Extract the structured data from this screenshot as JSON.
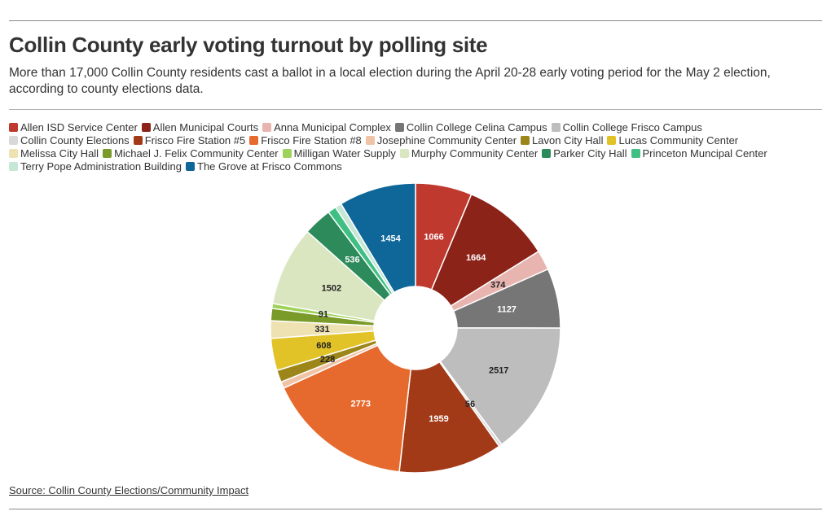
{
  "title": "Collin County early voting turnout by polling site",
  "subtitle": "More than 17,000 Collin County residents cast a ballot in a local election during the April 20-28 early voting period for the May 2 election, according to county elections data.",
  "source": "Source: Collin County Elections/Community Impact",
  "chart_data": {
    "type": "pie",
    "donut": true,
    "legend_position": "top-left",
    "labels": [
      "Allen ISD Service Center",
      "Allen Municipal Courts",
      "Anna Municipal Complex",
      "Collin College Celina Campus",
      "Collin College Frisco Campus",
      "Collin County Elections",
      "Frisco Fire Station #5",
      "Frisco Fire Station #8",
      "Josephine Community Center",
      "Lavon City Hall",
      "Lucas Community Center",
      "Melissa City Hall",
      "Michael J. Felix Community Center",
      "Milligan Water Supply",
      "Murphy Community Center",
      "Parker City Hall",
      "Princeton Muncipal Center",
      "Terry Pope Administration Building",
      "The Grove at Frisco Commons"
    ],
    "values": [
      1066,
      1664,
      374,
      1127,
      2517,
      56,
      1959,
      2773,
      124,
      228,
      608,
      331,
      230,
      91,
      1502,
      536,
      158,
      122,
      1454
    ],
    "value_labels": [
      "1066",
      "1664",
      "374",
      "1127",
      "2517",
      "56",
      "1959",
      "2773",
      "",
      "228",
      "608",
      "331",
      "",
      "91",
      "1502",
      "536",
      "",
      "",
      "1454"
    ],
    "colors": [
      "#c0392f",
      "#8c2318",
      "#e8b4b0",
      "#767676",
      "#bdbdbd",
      "#d9d9d9",
      "#a33a17",
      "#e66a2e",
      "#f0c3a6",
      "#9c8619",
      "#e2c327",
      "#efe2b2",
      "#7a9a2a",
      "#9fd25a",
      "#d9e6bf",
      "#2d8a5b",
      "#3fbf84",
      "#c6e6d6",
      "#0e6699"
    ],
    "label_colors": [
      "#ffffff",
      "#ffffff",
      "#222222",
      "#ffffff",
      "#222222",
      "#222222",
      "#ffffff",
      "#ffffff",
      "#222222",
      "#222222",
      "#222222",
      "#222222",
      "#ffffff",
      "#222222",
      "#222222",
      "#ffffff",
      "#222222",
      "#222222",
      "#ffffff"
    ]
  }
}
